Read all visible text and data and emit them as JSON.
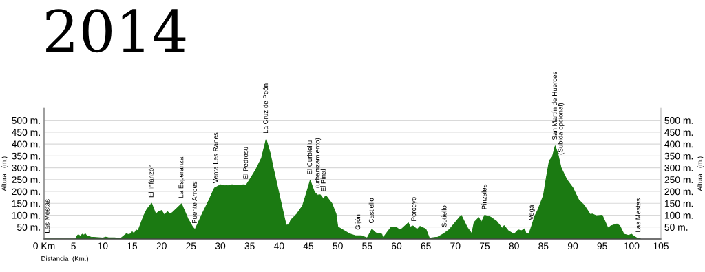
{
  "chart_data": {
    "type": "area",
    "title": "2014",
    "xlabel": "Distancia  (Km.)",
    "ylabel": "Altura   (m.)",
    "y2label": "Altura   (m.)",
    "x": [
      0,
      5.4,
      5.5,
      5.8,
      6.2,
      6.5,
      6.8,
      7,
      7.3,
      8,
      10,
      10.5,
      11,
      12,
      13,
      13.5,
      14,
      14.5,
      15,
      15.3,
      15.7,
      16,
      17,
      17.5,
      18.3,
      19,
      19.5,
      20,
      20.5,
      21,
      21.5,
      22,
      23.4,
      24.5,
      25.3,
      25.7,
      27,
      28,
      29,
      30,
      31,
      32,
      33,
      34,
      34.4,
      35,
      36,
      37,
      37.8,
      38.5,
      39,
      41.2,
      41.7,
      42,
      43,
      44,
      44.5,
      45.3,
      46,
      46.5,
      47,
      47.5,
      48,
      49,
      49.7,
      50,
      51,
      52,
      53,
      54,
      55,
      55.8,
      56.5,
      57.5,
      57.7,
      58,
      59,
      60,
      60.6,
      61,
      62,
      62.3,
      62.8,
      63.5,
      64,
      65,
      65.6,
      66,
      67,
      68,
      69,
      70,
      71,
      72,
      72.8,
      73.2,
      74,
      74.4,
      75,
      76,
      77,
      78,
      78.3,
      79,
      80,
      80.7,
      81.3,
      81.8,
      82,
      82.5,
      83,
      83.5,
      84,
      85,
      85.5,
      86,
      86.5,
      87,
      87.5,
      88,
      89,
      90,
      90.5,
      91,
      92,
      93,
      93.3,
      94,
      95,
      96,
      96.5,
      97.5,
      98,
      98.7,
      99.5,
      100,
      100.5,
      101,
      101.5
    ],
    "series": [
      {
        "color": "#1b7a12",
        "values": [
          0,
          0,
          10,
          18,
          12,
          20,
          16,
          22,
          12,
          8,
          4,
          8,
          5,
          5,
          2,
          12,
          22,
          18,
          30,
          22,
          38,
          35,
          100,
          125,
          150,
          105,
          115,
          120,
          100,
          115,
          105,
          115,
          148,
          85,
          50,
          40,
          110,
          160,
          215,
          228,
          225,
          228,
          226,
          228,
          227,
          250,
          290,
          340,
          420,
          360,
          300,
          58,
          60,
          80,
          105,
          140,
          180,
          247,
          198,
          185,
          186,
          170,
          182,
          149,
          105,
          51,
          36,
          22,
          14,
          14,
          4,
          41,
          25,
          20,
          0,
          15,
          48,
          48,
          38,
          45,
          68,
          50,
          55,
          40,
          53,
          41,
          3,
          5,
          8,
          22,
          40,
          70,
          100,
          50,
          22,
          70,
          90,
          68,
          100,
          92,
          75,
          45,
          56,
          35,
          20,
          38,
          35,
          43,
          25,
          20,
          55,
          95,
          120,
          183,
          260,
          330,
          345,
          392,
          355,
          300,
          249,
          216,
          190,
          165,
          140,
          102,
          105,
          98,
          100,
          45,
          55,
          63,
          55,
          20,
          15,
          20,
          10,
          3,
          0
        ]
      }
    ],
    "xlim": [
      0,
      105
    ],
    "xticks": [
      {
        "value": 0,
        "label": "0 Km"
      },
      5,
      10,
      15,
      20,
      25,
      30,
      35,
      40,
      45,
      50,
      55,
      60,
      65,
      70,
      75,
      80,
      85,
      90,
      95,
      100,
      105
    ],
    "ylim": [
      0,
      550
    ],
    "yticks": [
      {
        "value": 50,
        "label": "50 m."
      },
      {
        "value": 100,
        "label": "100 m."
      },
      {
        "value": 150,
        "label": "150 m."
      },
      {
        "value": 200,
        "label": "200 m."
      },
      {
        "value": 250,
        "label": "250 m."
      },
      {
        "value": 300,
        "label": "300 m."
      },
      {
        "value": 350,
        "label": "350 m."
      },
      {
        "value": 400,
        "label": "400 m."
      },
      {
        "value": 450,
        "label": "450 m."
      },
      {
        "value": 500,
        "label": "500 m."
      }
    ],
    "y2lim": [
      0,
      550
    ],
    "y2ticks": [
      {
        "value": 50,
        "label": "50 m."
      },
      {
        "value": 100,
        "label": "100 m."
      },
      {
        "value": 150,
        "label": "150 m."
      },
      {
        "value": 200,
        "label": "200 m."
      },
      {
        "value": 250,
        "label": "250 m."
      },
      {
        "value": 300,
        "label": "300 m."
      },
      {
        "value": 350,
        "label": "350 m."
      },
      {
        "value": 400,
        "label": "400 m."
      },
      {
        "value": 450,
        "label": "450 m."
      },
      {
        "value": 500,
        "label": "500 m."
      }
    ],
    "grid": "y",
    "annotations": [
      {
        "text": "Las Mestas",
        "x": 0.6,
        "y": 0
      },
      {
        "text": "El Infanzón",
        "x": 18.3,
        "y": 150
      },
      {
        "text": "La Esperanza",
        "x": 23.4,
        "y": 148
      },
      {
        "text": "Puente Arroes",
        "x": 25.7,
        "y": 40
      },
      {
        "text": "Venta Les Ranes",
        "x": 29.3,
        "y": 210
      },
      {
        "text": "El Pedrosu",
        "x": 34.4,
        "y": 227
      },
      {
        "text": "La Cruz de Peón",
        "x": 37.8,
        "y": 420
      },
      {
        "text": "El Curbiellu",
        "x": 45.3,
        "y": 247
      },
      {
        "text": "(urbanizamiento)",
        "x": 46.6,
        "y": 190
      },
      {
        "text": "El Pinal",
        "x": 47.6,
        "y": 175
      },
      {
        "text": "Gijón",
        "x": 53.5,
        "y": 14
      },
      {
        "text": "Castiello",
        "x": 55.8,
        "y": 41
      },
      {
        "text": "Porceyo",
        "x": 63,
        "y": 50
      },
      {
        "text": "Sotiello",
        "x": 68.2,
        "y": 25
      },
      {
        "text": "Pinzales",
        "x": 75,
        "y": 100
      },
      {
        "text": "Vega",
        "x": 83,
        "y": 55
      },
      {
        "text": "San Martín de Huerces",
        "x": 87,
        "y": 392
      },
      {
        "text": "(Subida opcional)",
        "x": 88,
        "y": 330
      },
      {
        "text": "Las Mestas",
        "x": 101.2,
        "y": 3
      }
    ]
  }
}
